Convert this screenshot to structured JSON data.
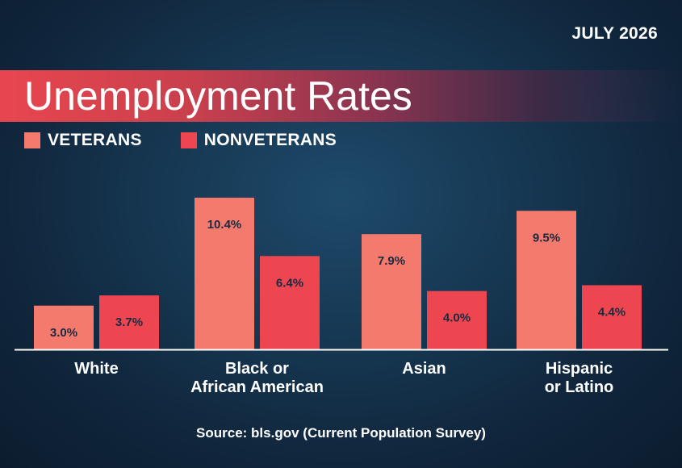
{
  "header": {
    "date": "JULY 2026",
    "title": "Unemployment Rates"
  },
  "chart_data": {
    "type": "bar",
    "categories": [
      [
        "White"
      ],
      [
        "Black or",
        "African American"
      ],
      [
        "Asian"
      ],
      [
        "Hispanic",
        "or Latino"
      ]
    ],
    "series": [
      {
        "name": "VETERANS",
        "color": "#f47a6e",
        "values": [
          3.0,
          10.4,
          7.9,
          9.5
        ],
        "labels": [
          "3.0%",
          "10.4%",
          "7.9%",
          "9.5%"
        ]
      },
      {
        "name": "NONVETERANS",
        "color": "#ee4650",
        "values": [
          3.7,
          6.4,
          4.0,
          4.4
        ],
        "labels": [
          "3.7%",
          "6.4%",
          "4.0%",
          "4.4%"
        ]
      }
    ],
    "ylim": [
      0,
      10.4
    ],
    "grid": false,
    "legend": "top-left"
  },
  "footer": {
    "source": "Source: bls.gov (Current Population Survey)"
  }
}
